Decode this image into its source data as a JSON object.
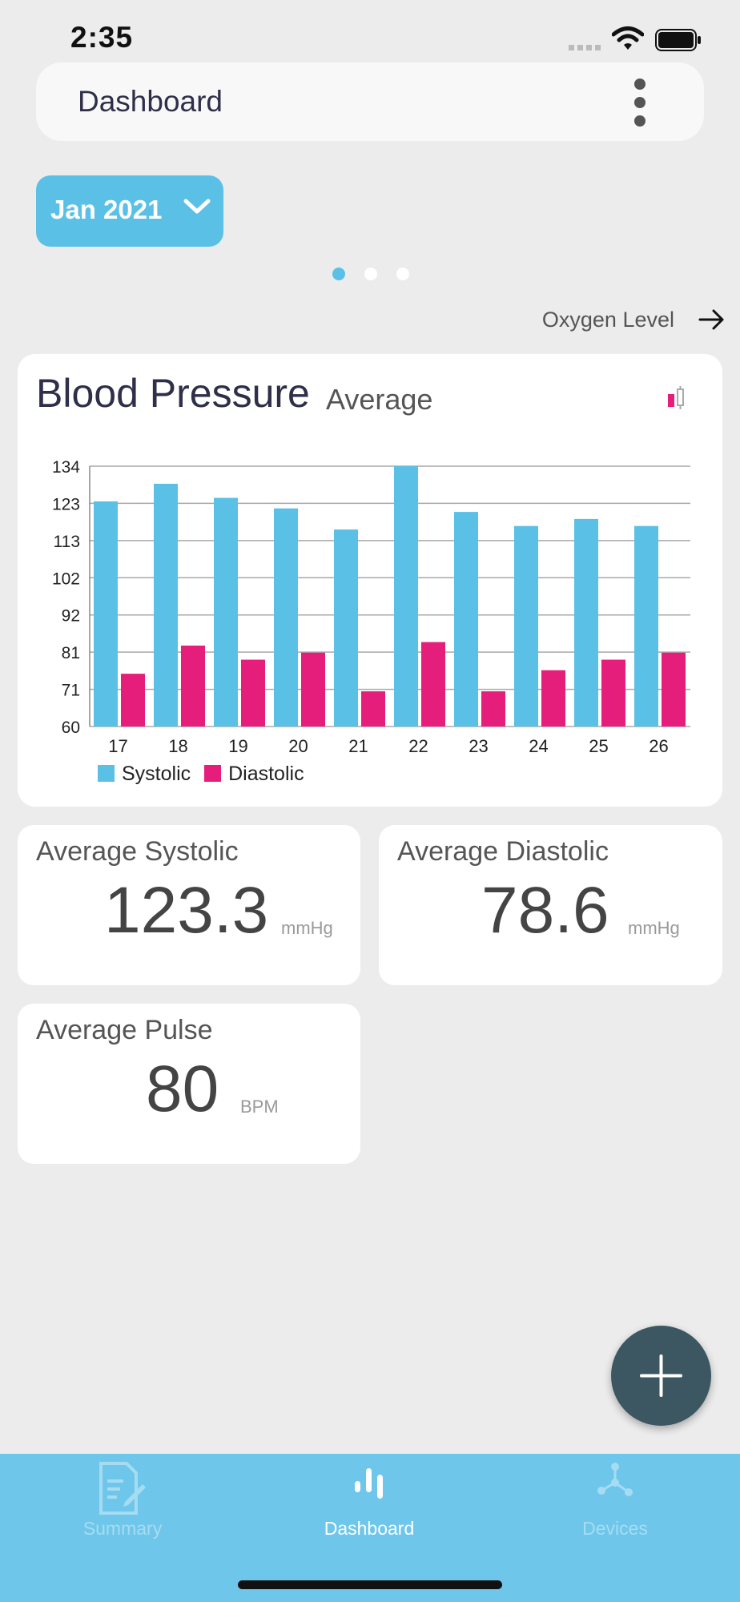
{
  "status_bar": {
    "time": "2:35"
  },
  "header": {
    "title": "Dashboard"
  },
  "month_selector": {
    "label": "Jan 2021"
  },
  "page_indicator": {
    "count": 3,
    "active": 0
  },
  "next_link": {
    "label": "Oxygen Level"
  },
  "chart_card": {
    "title": "Blood Pressure",
    "subtitle": "Average"
  },
  "chart_data": {
    "type": "bar",
    "categories": [
      "17",
      "18",
      "19",
      "20",
      "21",
      "22",
      "23",
      "24",
      "25",
      "26"
    ],
    "series": [
      {
        "name": "Systolic",
        "color": "#5bc0e6",
        "values": [
          124,
          129,
          125,
          122,
          116,
          134,
          121,
          117,
          119,
          117
        ]
      },
      {
        "name": "Diastolic",
        "color": "#e61e7b",
        "values": [
          75,
          83,
          79,
          81,
          70,
          84,
          70,
          76,
          79,
          81
        ]
      }
    ],
    "yticks": [
      "134",
      "123",
      "113",
      "102",
      "92",
      "81",
      "71",
      "60"
    ],
    "ylim": [
      60,
      134
    ],
    "grid": true,
    "legend_position": "bottom-left"
  },
  "stats": {
    "systolic": {
      "label": "Average Systolic",
      "value": "123.3",
      "unit": "mmHg"
    },
    "diastolic": {
      "label": "Average Diastolic",
      "value": "78.6",
      "unit": "mmHg"
    },
    "pulse": {
      "label": "Average Pulse",
      "value": "80",
      "unit": "BPM"
    }
  },
  "tabs": [
    {
      "label": "Summary",
      "icon": "summary-icon",
      "active": false
    },
    {
      "label": "Dashboard",
      "icon": "dashboard-icon",
      "active": true
    },
    {
      "label": "Devices",
      "icon": "devices-icon",
      "active": false
    }
  ],
  "colors": {
    "accent": "#5bc0e6",
    "systolic": "#5bc0e6",
    "diastolic": "#e61e7b",
    "fab": "#3c5762",
    "tabbar": "#6ec6ea"
  }
}
